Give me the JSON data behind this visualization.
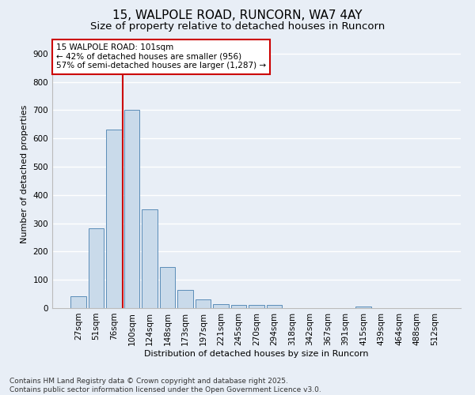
{
  "title1": "15, WALPOLE ROAD, RUNCORN, WA7 4AY",
  "title2": "Size of property relative to detached houses in Runcorn",
  "xlabel": "Distribution of detached houses by size in Runcorn",
  "ylabel": "Number of detached properties",
  "categories": [
    "27sqm",
    "51sqm",
    "76sqm",
    "100sqm",
    "124sqm",
    "148sqm",
    "173sqm",
    "197sqm",
    "221sqm",
    "245sqm",
    "270sqm",
    "294sqm",
    "318sqm",
    "342sqm",
    "367sqm",
    "391sqm",
    "415sqm",
    "439sqm",
    "464sqm",
    "488sqm",
    "512sqm"
  ],
  "values": [
    42,
    283,
    632,
    700,
    350,
    145,
    65,
    30,
    15,
    11,
    11,
    10,
    0,
    0,
    0,
    0,
    6,
    0,
    0,
    0,
    0
  ],
  "bar_color": "#c9daea",
  "bar_edge_color": "#5b8db8",
  "bg_color": "#e8eef6",
  "grid_color": "#ffffff",
  "annotation_box_text": "15 WALPOLE ROAD: 101sqm\n← 42% of detached houses are smaller (956)\n57% of semi-detached houses are larger (1,287) →",
  "annotation_box_color": "#ffffff",
  "annotation_box_edge_color": "#cc0000",
  "vline_color": "#cc0000",
  "ylim": [
    0,
    950
  ],
  "yticks": [
    0,
    100,
    200,
    300,
    400,
    500,
    600,
    700,
    800,
    900
  ],
  "footer1": "Contains HM Land Registry data © Crown copyright and database right 2025.",
  "footer2": "Contains public sector information licensed under the Open Government Licence v3.0.",
  "title_fontsize": 11,
  "subtitle_fontsize": 9.5,
  "axis_label_fontsize": 8,
  "tick_fontsize": 7.5,
  "annotation_fontsize": 7.5,
  "footer_fontsize": 6.5
}
